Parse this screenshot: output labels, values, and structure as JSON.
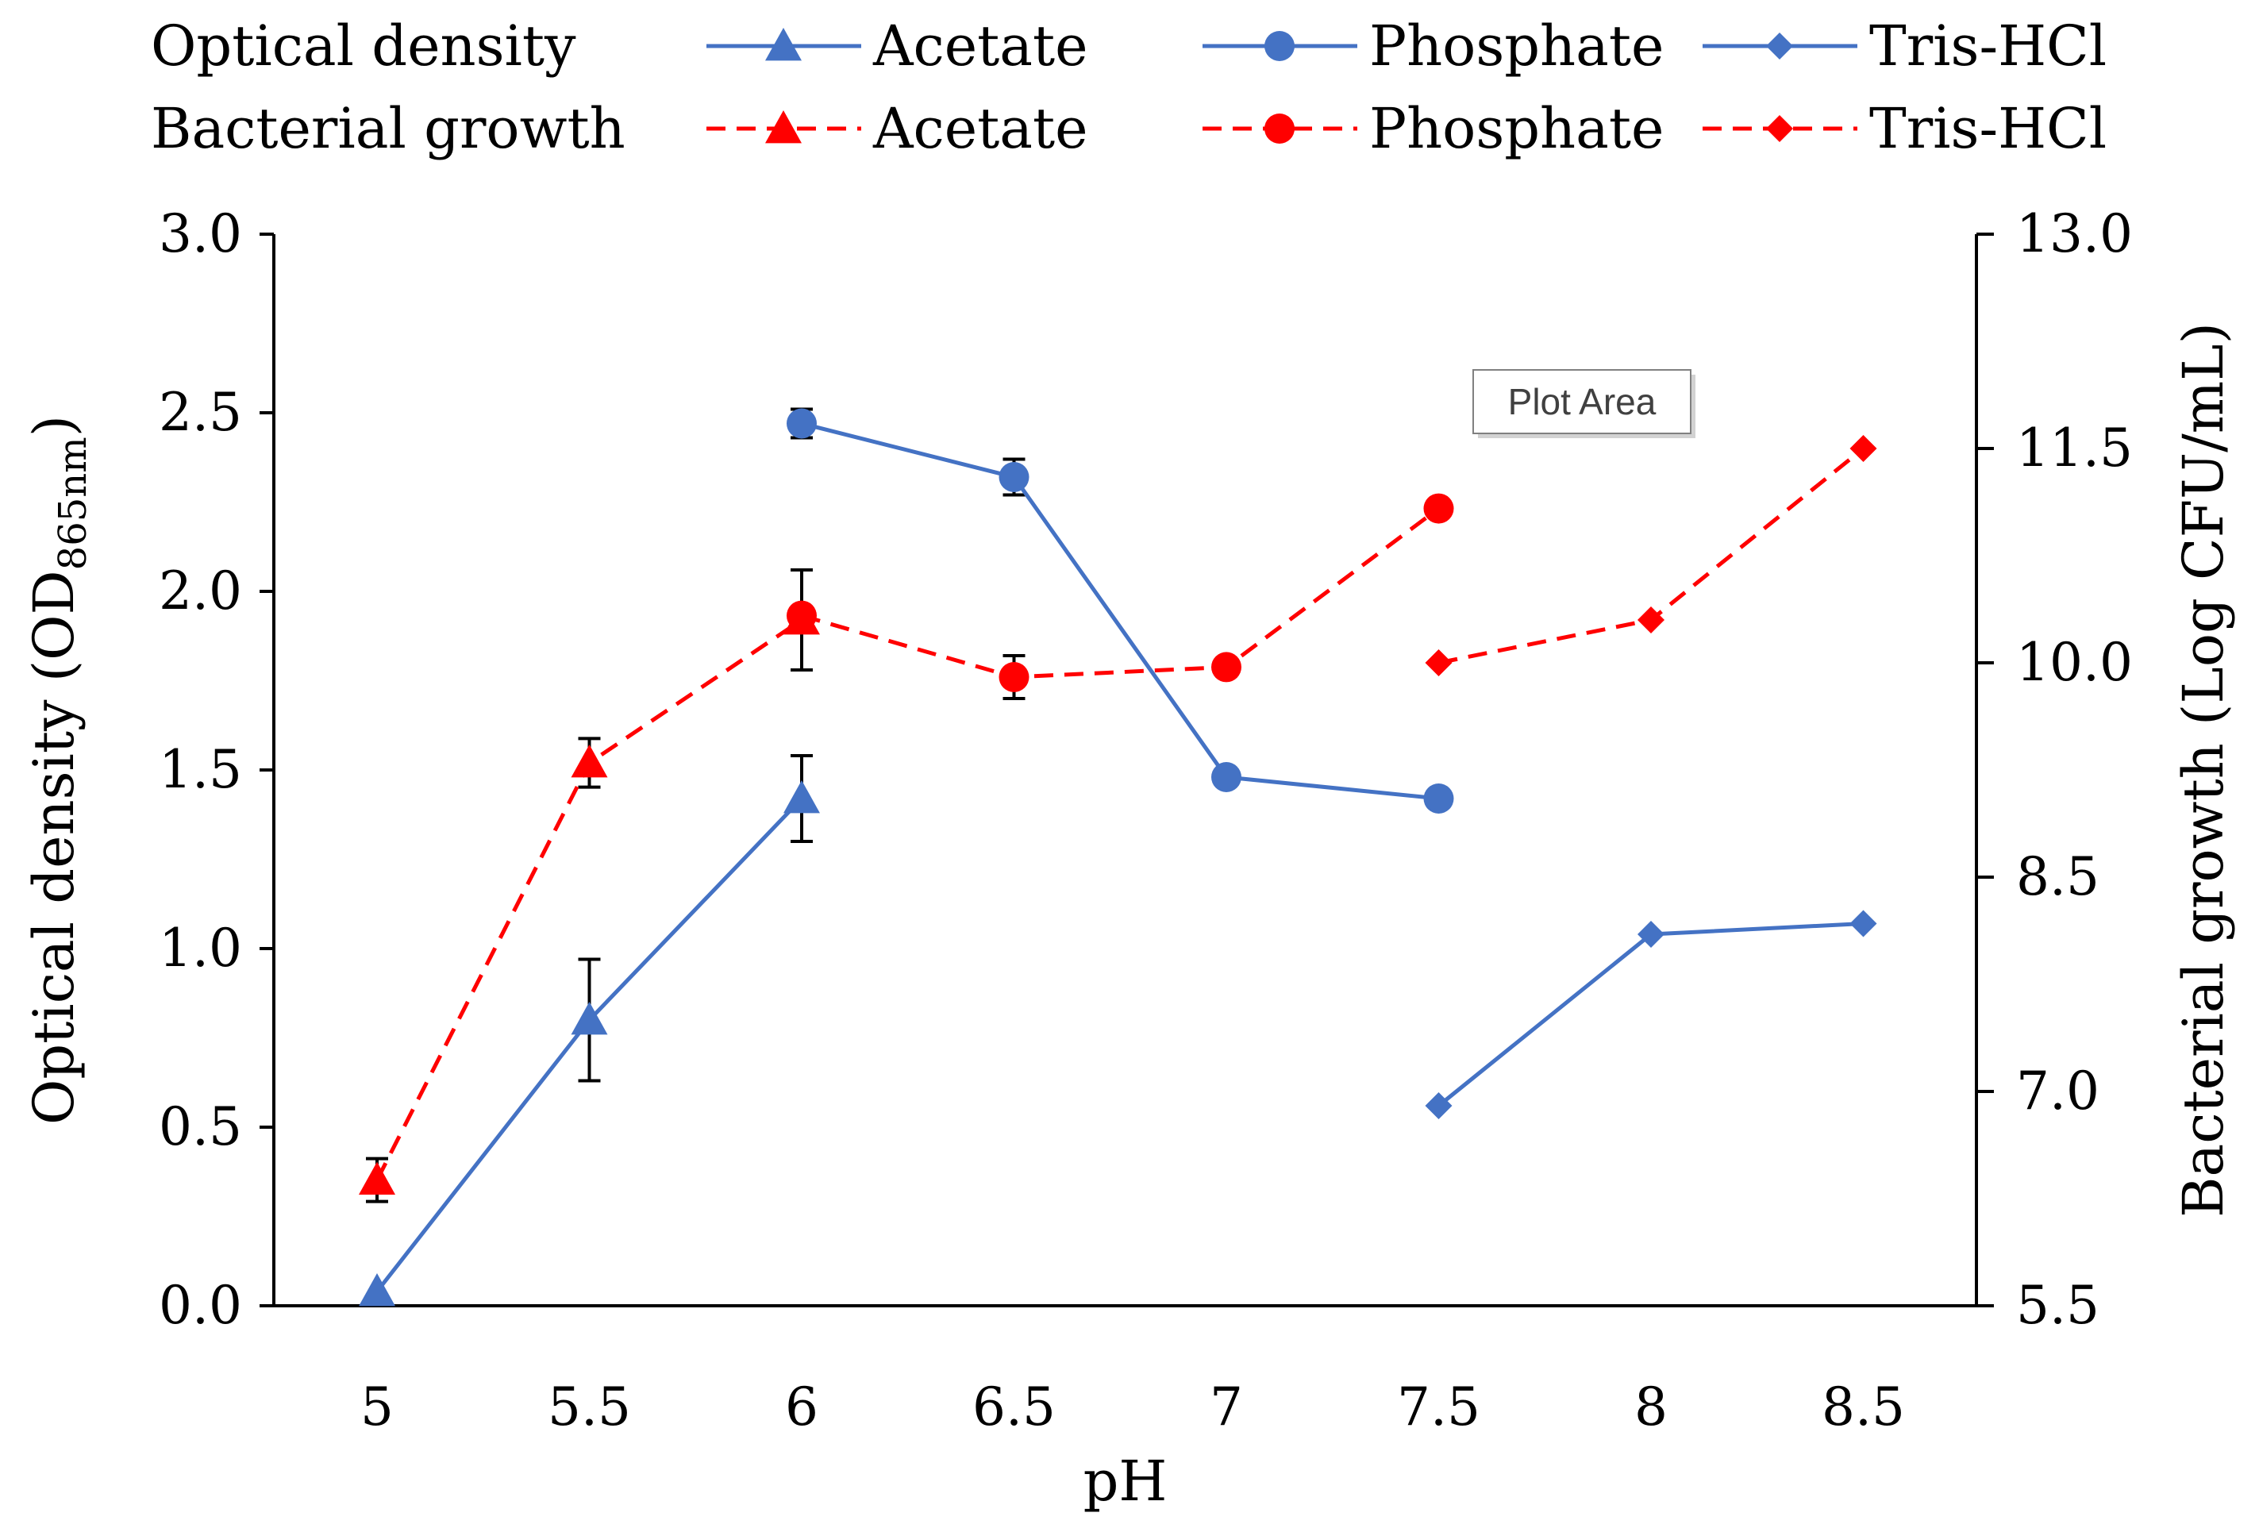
{
  "chart_data": {
    "type": "line",
    "categories": [
      "5",
      "5.5",
      "6",
      "6.5",
      "7",
      "7.5",
      "8",
      "8.5"
    ],
    "xlabel": "pH",
    "ylabel_left": {
      "main": "Optical density (OD",
      "sub": "865nm",
      "tail": ")"
    },
    "ylabel_right": "Bacterial growth (Log CFU/mL)",
    "y_left": {
      "range": [
        0,
        3
      ],
      "ticks": [
        0,
        0.5,
        1,
        1.5,
        2,
        2.5,
        3
      ],
      "tick_labels": [
        "0.0",
        "0.5",
        "1.0",
        "1.5",
        "2.0",
        "2.5",
        "3.0"
      ]
    },
    "y_right": {
      "range": [
        5.5,
        13
      ],
      "ticks": [
        5.5,
        7,
        8.5,
        10,
        11.5,
        13
      ],
      "tick_labels": [
        "5.5",
        "7.0",
        "8.5",
        "10.0",
        "11.5",
        "13.0"
      ]
    },
    "legend": {
      "row_labels": [
        "Optical density",
        "Bacterial growth"
      ],
      "position": "top"
    },
    "series": [
      {
        "name": "Acetate",
        "group": "Optical density",
        "axis": "left",
        "marker": "triangle",
        "style": "solid",
        "color": "#4472C4",
        "points": [
          {
            "x": "5",
            "y": 0.04,
            "err": 0
          },
          {
            "x": "5.5",
            "y": 0.8,
            "err": 0.17
          },
          {
            "x": "6",
            "y": 1.42,
            "err": 0.12
          }
        ]
      },
      {
        "name": "Phosphate",
        "group": "Optical density",
        "axis": "left",
        "marker": "circle",
        "style": "solid",
        "color": "#4472C4",
        "points": [
          {
            "x": "6",
            "y": 2.47,
            "err": 0.04
          },
          {
            "x": "6.5",
            "y": 2.32,
            "err": 0.05
          },
          {
            "x": "7",
            "y": 1.48,
            "err": 0
          },
          {
            "x": "7.5",
            "y": 1.42,
            "err": 0
          }
        ]
      },
      {
        "name": "Tris-HCl",
        "group": "Optical density",
        "axis": "left",
        "marker": "diamond",
        "style": "solid",
        "color": "#4472C4",
        "points": [
          {
            "x": "7.5",
            "y": 0.56,
            "err": 0
          },
          {
            "x": "8",
            "y": 1.04,
            "err": 0
          },
          {
            "x": "8.5",
            "y": 1.07,
            "err": 0
          }
        ]
      },
      {
        "name": "Acetate",
        "group": "Bacterial growth",
        "axis": "right",
        "marker": "triangle",
        "style": "dashed",
        "color": "#FF0000",
        "points": [
          {
            "x": "5",
            "y": 6.38,
            "err": 0.15
          },
          {
            "x": "5.5",
            "y": 9.3,
            "err": 0.17
          },
          {
            "x": "6",
            "y": 10.3,
            "err": 0.35
          }
        ]
      },
      {
        "name": "Phosphate",
        "group": "Bacterial growth",
        "axis": "right",
        "marker": "circle",
        "style": "dashed",
        "color": "#FF0000",
        "points": [
          {
            "x": "6",
            "y": 10.33,
            "err": 0.05
          },
          {
            "x": "6.5",
            "y": 9.9,
            "err": 0.15
          },
          {
            "x": "7",
            "y": 9.97,
            "err": 0
          },
          {
            "x": "7.5",
            "y": 11.08,
            "err": 0
          }
        ]
      },
      {
        "name": "Tris-HCl",
        "group": "Bacterial growth",
        "axis": "right",
        "marker": "diamond",
        "style": "dashed",
        "color": "#FF0000",
        "points": [
          {
            "x": "7.5",
            "y": 10,
            "err": 0
          },
          {
            "x": "8",
            "y": 10.3,
            "err": 0
          },
          {
            "x": "8.5",
            "y": 11.5,
            "err": 0
          }
        ]
      }
    ],
    "annotation": "Plot Area",
    "grid": false
  }
}
